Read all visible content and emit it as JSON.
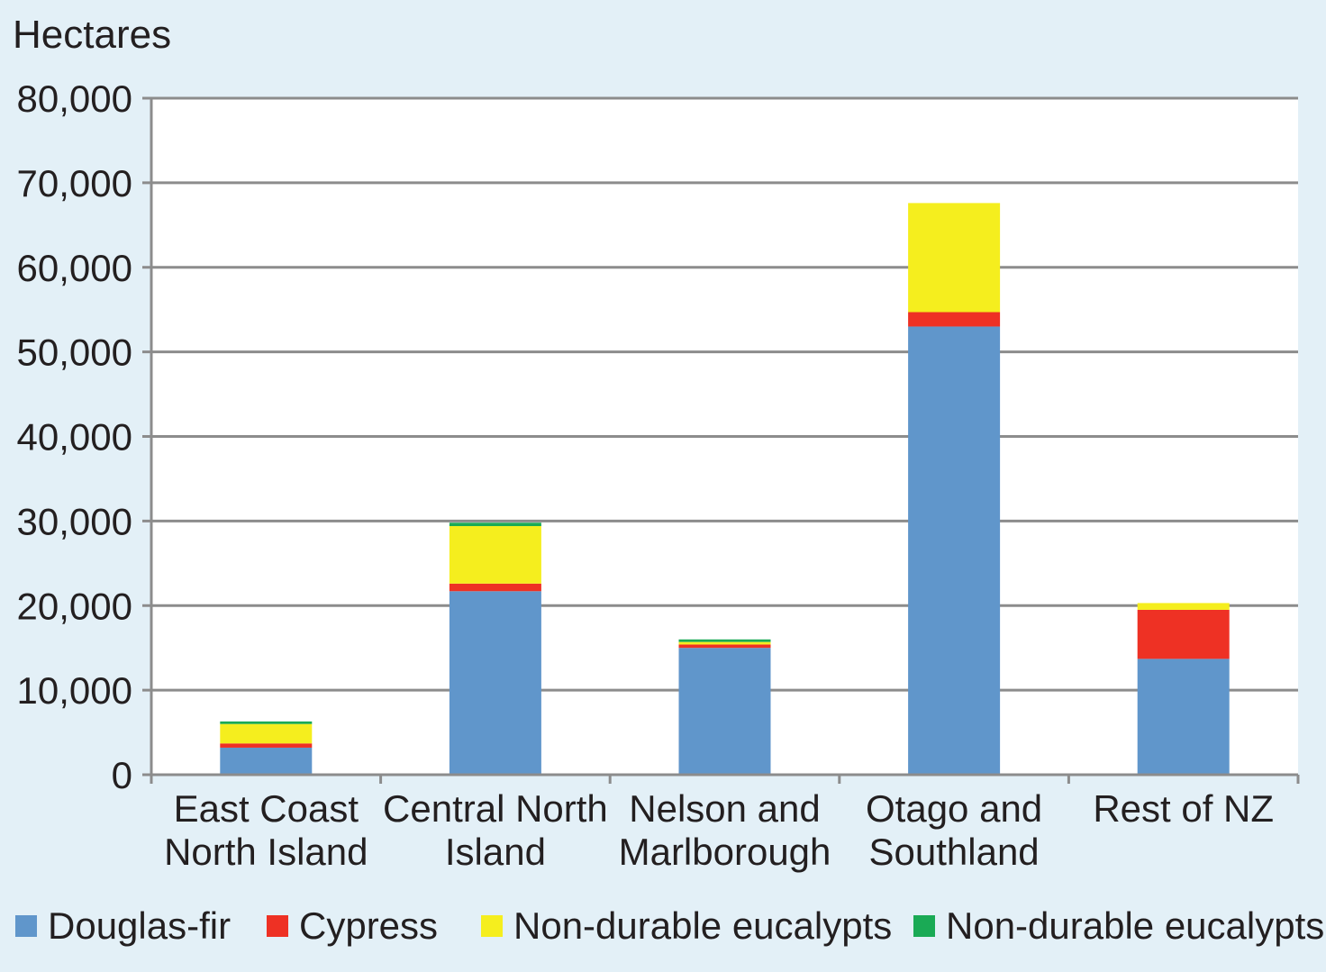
{
  "chart_data": {
    "type": "bar",
    "stacked": true,
    "ylabel": "Hectares",
    "ylim": [
      0,
      80000
    ],
    "yticks": [
      0,
      10000,
      20000,
      30000,
      40000,
      50000,
      60000,
      70000,
      80000
    ],
    "ytick_labels": [
      "0",
      "10,000",
      "20,000",
      "30,000",
      "40,000",
      "50,000",
      "60,000",
      "70,000",
      "80,000"
    ],
    "grid": true,
    "legend_position": "bottom",
    "categories": [
      [
        "East Coast",
        "North Island"
      ],
      [
        "Central North",
        "Island"
      ],
      [
        "Nelson and",
        "Marlborough"
      ],
      [
        "Otago and",
        "Southland"
      ],
      [
        "Rest of NZ"
      ]
    ],
    "series": [
      {
        "name": "Douglas-fir",
        "color": "#6096cb",
        "values": [
          3200,
          21700,
          15000,
          53000,
          13700
        ]
      },
      {
        "name": "Cypress",
        "color": "#ee3124",
        "values": [
          500,
          900,
          400,
          1700,
          5800
        ]
      },
      {
        "name": "Non-durable eucalypts",
        "color": "#f5ee1e",
        "values": [
          2300,
          6800,
          300,
          12900,
          800
        ]
      },
      {
        "name": "Non-durable eucalypts",
        "color": "#1aaa55",
        "values": [
          300,
          400,
          300,
          0,
          0
        ]
      }
    ]
  }
}
